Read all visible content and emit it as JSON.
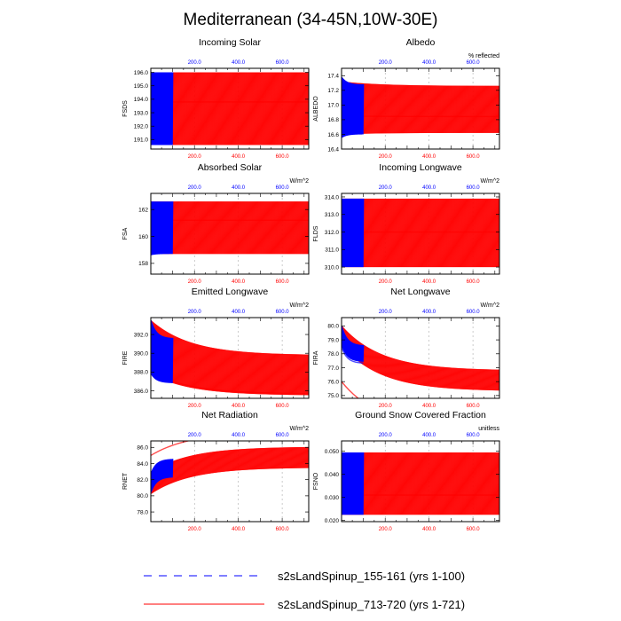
{
  "figure": {
    "title": "Mediterranean (34-45N,10W-30E)"
  },
  "colors": {
    "case1": "#0000ff",
    "case2": "#ff0000",
    "axis": "#000000",
    "gridline": "#999999"
  },
  "legend": {
    "placement": "bottom",
    "entries": [
      {
        "label": "s2sLandSpinup_155-161 (yrs 1-100)",
        "color": "#0000ff",
        "style": "dashed"
      },
      {
        "label": "s2sLandSpinup_713-720 (yrs 1-721)",
        "color": "#ff0000",
        "style": "solid"
      }
    ]
  },
  "chart_data": [
    {
      "id": "fsds",
      "type": "line",
      "title": "Incoming Solar",
      "ylabel": "FSDS",
      "units": "",
      "xlim": [
        1,
        721
      ],
      "ylim": [
        190.3,
        196.3
      ],
      "yticks": [
        191,
        192,
        193,
        194,
        195,
        196
      ],
      "yticklabels": [
        "191.0",
        "192.0",
        "193.0",
        "194.0",
        "195.0",
        "196.0"
      ],
      "xticks_top": [
        200,
        400,
        600
      ],
      "xticks_bottom": [
        200,
        400,
        600
      ],
      "xticklabels_top": [
        "200.0",
        "400.0",
        "600.0"
      ],
      "xticklabels_bottom": [
        "200.0",
        "400.0",
        "600.0"
      ],
      "series": [
        {
          "name": "s2sLandSpinup_155-161",
          "years": [
            1,
            100
          ],
          "annual_min": [
            190.6,
            190.6
          ],
          "annual_max": [
            196.0,
            196.0
          ],
          "cycle_mid": 193.8
        },
        {
          "name": "s2sLandSpinup_713-720",
          "years": [
            1,
            721
          ],
          "annual_min": [
            190.6,
            190.6
          ],
          "annual_max": [
            196.0,
            196.0
          ],
          "cycle_mid": 193.8
        }
      ]
    },
    {
      "id": "albedo",
      "type": "line",
      "title": "Albedo",
      "ylabel": "ALBEDO",
      "units": "% reflected",
      "xlim": [
        1,
        721
      ],
      "ylim": [
        16.4,
        17.5
      ],
      "yticks": [
        16.4,
        16.6,
        16.8,
        17.0,
        17.2,
        17.4
      ],
      "yticklabels": [
        "16.4",
        "16.6",
        "16.8",
        "17.0",
        "17.2",
        "17.4"
      ],
      "xticks_top": [
        200,
        400,
        600
      ],
      "xticks_bottom": [
        200,
        400,
        600
      ],
      "xticklabels_top": [
        "200.0",
        "400.0",
        "600.0"
      ],
      "xticklabels_bottom": [
        "200.0",
        "400.0",
        "600.0"
      ],
      "series": [
        {
          "name": "s2sLandSpinup_155-161",
          "years": [
            1,
            100
          ],
          "annual_min": [
            16.55,
            16.6
          ],
          "annual_max": [
            17.38,
            17.28
          ],
          "cycle_mid": 16.85
        },
        {
          "name": "s2sLandSpinup_713-720",
          "years": [
            1,
            721
          ],
          "annual_min": [
            16.6,
            16.62
          ],
          "annual_max": [
            17.32,
            17.26
          ],
          "cycle_mid": 16.85
        }
      ]
    },
    {
      "id": "fsa",
      "type": "line",
      "title": "Absorbed Solar",
      "ylabel": "FSA",
      "units": "W/m^2",
      "xlim": [
        1,
        721
      ],
      "ylim": [
        157.2,
        163.2
      ],
      "yticks": [
        158,
        160,
        162
      ],
      "yticklabels": [
        "158",
        "160",
        "162"
      ],
      "xticks_top": [
        200,
        400,
        600
      ],
      "xticks_bottom": [
        200,
        400,
        600
      ],
      "xticklabels_top": [
        "200.0",
        "400.0",
        "600.0"
      ],
      "xticklabels_bottom": [
        "200.0",
        "400.0",
        "600.0"
      ],
      "series": [
        {
          "name": "s2sLandSpinup_155-161",
          "years": [
            1,
            100
          ],
          "annual_min": [
            158.6,
            158.7
          ],
          "annual_max": [
            162.6,
            162.6
          ],
          "cycle_mid": 161.2
        },
        {
          "name": "s2sLandSpinup_713-720",
          "years": [
            1,
            721
          ],
          "annual_min": [
            158.7,
            158.7
          ],
          "annual_max": [
            162.6,
            162.6
          ],
          "cycle_mid": 161.2
        }
      ]
    },
    {
      "id": "flds",
      "type": "line",
      "title": "Incoming Longwave",
      "ylabel": "FLDS",
      "units": "W/m^2",
      "xlim": [
        1,
        721
      ],
      "ylim": [
        309.6,
        314.2
      ],
      "yticks": [
        310,
        311,
        312,
        313,
        314
      ],
      "yticklabels": [
        "310.0",
        "311.0",
        "312.0",
        "313.0",
        "314.0"
      ],
      "xticks_top": [
        200,
        400,
        600
      ],
      "xticks_bottom": [
        200,
        400,
        600
      ],
      "xticklabels_top": [
        "200.0",
        "400.0",
        "600.0"
      ],
      "xticklabels_bottom": [
        "200.0",
        "400.0",
        "600.0"
      ],
      "series": [
        {
          "name": "s2sLandSpinup_155-161",
          "years": [
            1,
            100
          ],
          "annual_min": [
            310.0,
            310.0
          ],
          "annual_max": [
            313.9,
            313.9
          ],
          "cycle_mid": 312.0
        },
        {
          "name": "s2sLandSpinup_713-720",
          "years": [
            1,
            721
          ],
          "annual_min": [
            310.0,
            310.0
          ],
          "annual_max": [
            313.9,
            313.9
          ],
          "cycle_mid": 312.0
        }
      ]
    },
    {
      "id": "fire",
      "type": "line",
      "title": "Emitted Longwave",
      "ylabel": "FIRE",
      "units": "W/m^2",
      "xlim": [
        1,
        721
      ],
      "ylim": [
        385.2,
        393.8
      ],
      "yticks": [
        386,
        388,
        390,
        392
      ],
      "yticklabels": [
        "386.0",
        "388.0",
        "390.0",
        "392.0"
      ],
      "xticks_top": [
        200,
        400,
        600
      ],
      "xticks_bottom": [
        200,
        400,
        600
      ],
      "xticklabels_top": [
        "200.0",
        "400.0",
        "600.0"
      ],
      "xticklabels_bottom": [
        "200.0",
        "400.0",
        "600.0"
      ],
      "series": [
        {
          "name": "s2sLandSpinup_155-161",
          "years": [
            1,
            100
          ],
          "annual_min": [
            387.8,
            386.8
          ],
          "annual_max": [
            393.5,
            391.6
          ],
          "cycle_mid": 390.0
        },
        {
          "name": "s2sLandSpinup_713-720",
          "years": [
            1,
            721
          ],
          "annual_min": [
            387.8,
            385.5
          ],
          "annual_max": [
            393.5,
            389.8
          ],
          "cycle_mid": 388.0
        }
      ]
    },
    {
      "id": "fira",
      "type": "line",
      "title": "Net Longwave",
      "ylabel": "FIRA",
      "units": "W/m^2",
      "xlim": [
        1,
        721
      ],
      "ylim": [
        74.8,
        80.6
      ],
      "yticks": [
        75,
        76,
        77,
        78,
        79,
        80
      ],
      "yticklabels": [
        "75.0",
        "76.0",
        "77.0",
        "78.0",
        "79.0",
        "80.0"
      ],
      "xticks_top": [
        200,
        400,
        600
      ],
      "xticks_bottom": [
        200,
        400,
        600
      ],
      "xticklabels_top": [
        "200.0",
        "400.0",
        "600.0"
      ],
      "xticklabels_bottom": [
        "200.0",
        "400.0",
        "600.0"
      ],
      "series": [
        {
          "name": "s2sLandSpinup_155-161",
          "years": [
            1,
            100
          ],
          "annual_min": [
            78.6,
            77.4
          ],
          "annual_max": [
            80.0,
            78.6
          ],
          "cycle_mid": 78.5
        },
        {
          "name": "s2sLandSpinup_713-720",
          "years": [
            1,
            721
          ],
          "annual_min": [
            78.6,
            75.3
          ],
          "annual_max": [
            80.0,
            76.8
          ],
          "cycle_mid": 76.0
        }
      ]
    },
    {
      "id": "rnet",
      "type": "line",
      "title": "Net Radiation",
      "ylabel": "RNET",
      "units": "W/m^2",
      "xlim": [
        1,
        721
      ],
      "ylim": [
        76.8,
        86.8
      ],
      "yticks": [
        78,
        80,
        82,
        84,
        86
      ],
      "yticklabels": [
        "78.0",
        "80.0",
        "82.0",
        "84.0",
        "86.0"
      ],
      "xticks_top": [
        200,
        400,
        600
      ],
      "xticks_bottom": [
        200,
        400,
        600
      ],
      "xticklabels_top": [
        "200.0",
        "400.0",
        "600.0"
      ],
      "xticklabels_bottom": [
        "200.0",
        "400.0",
        "600.0"
      ],
      "series": [
        {
          "name": "s2sLandSpinup_155-161",
          "years": [
            1,
            100
          ],
          "annual_min": [
            80.2,
            82.3
          ],
          "annual_max": [
            83.0,
            84.6
          ],
          "cycle_mid": 82.5
        },
        {
          "name": "s2sLandSpinup_713-720",
          "years": [
            1,
            721
          ],
          "annual_min": [
            80.2,
            83.5
          ],
          "annual_max": [
            83.0,
            86.1
          ],
          "cycle_mid": 85.0
        }
      ]
    },
    {
      "id": "fsno",
      "type": "line",
      "title": "Ground Snow Covered Fraction",
      "ylabel": "FSNO",
      "units": "unitless",
      "xlim": [
        1,
        721
      ],
      "ylim": [
        0.0195,
        0.0545
      ],
      "yticks": [
        0.02,
        0.03,
        0.04,
        0.05
      ],
      "yticklabels": [
        "0.020",
        "0.030",
        "0.040",
        "0.050"
      ],
      "xticks_top": [
        200,
        400,
        600
      ],
      "xticks_bottom": [
        200,
        400,
        600
      ],
      "xticklabels_top": [
        "200.0",
        "400.0",
        "600.0"
      ],
      "xticklabels_bottom": [
        "200.0",
        "400.0",
        "600.0"
      ],
      "series": [
        {
          "name": "s2sLandSpinup_155-161",
          "years": [
            1,
            100
          ],
          "annual_min": [
            0.0225,
            0.0225
          ],
          "annual_max": [
            0.0495,
            0.0495
          ],
          "cycle_mid": 0.031
        },
        {
          "name": "s2sLandSpinup_713-720",
          "years": [
            1,
            721
          ],
          "annual_min": [
            0.0225,
            0.0225
          ],
          "annual_max": [
            0.0495,
            0.0495
          ],
          "cycle_mid": 0.031
        }
      ]
    }
  ]
}
